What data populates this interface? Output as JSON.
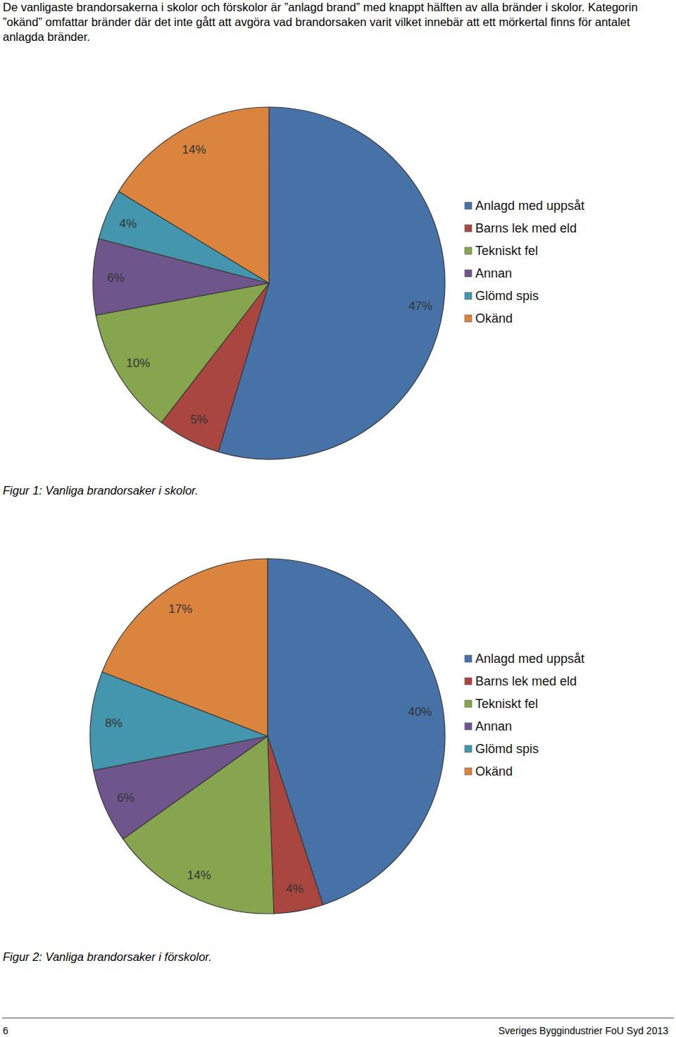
{
  "intro": "De vanligaste brandorsakerna i skolor och förskolor är ”anlagd brand” med knappt hälften av alla bränder i skolor. Kategorin ”okänd” omfattar bränder där det inte gått att avgöra vad brandorsaken varit vilket innebär att ett mörkertal finns för antalet anlagda bränder.",
  "chart_data": [
    {
      "type": "pie",
      "title": "Figur 1: Vanliga brandorsaker i skolor.",
      "categories": [
        "Anlagd med uppsåt",
        "Barns lek med eld",
        "Tekniskt fel",
        "Annan",
        "Glömd spis",
        "Okänd"
      ],
      "values": [
        47,
        5,
        10,
        6,
        4,
        14
      ],
      "value_labels": [
        "47%",
        "5%",
        "10%",
        "6%",
        "4%",
        "14%"
      ],
      "colors": [
        "#4672a8",
        "#a9463f",
        "#87a54e",
        "#6e568d",
        "#4396ae",
        "#da843d"
      ],
      "data_labels": true,
      "legend": "right"
    },
    {
      "type": "pie",
      "title": "Figur 2: Vanliga brandorsaker i förskolor.",
      "categories": [
        "Anlagd med uppsåt",
        "Barns lek med eld",
        "Tekniskt fel",
        "Annan",
        "Glömd spis",
        "Okänd"
      ],
      "values": [
        40,
        4,
        14,
        6,
        8,
        17
      ],
      "value_labels": [
        "40%",
        "4%",
        "14%",
        "6%",
        "8%",
        "17%"
      ],
      "colors": [
        "#4672a8",
        "#a9463f",
        "#87a54e",
        "#6e568d",
        "#4396ae",
        "#da843d"
      ],
      "data_labels": true,
      "legend": "right"
    }
  ],
  "footer": {
    "page": "6",
    "publisher": "Sveriges Byggindustrier FoU Syd 2013"
  }
}
